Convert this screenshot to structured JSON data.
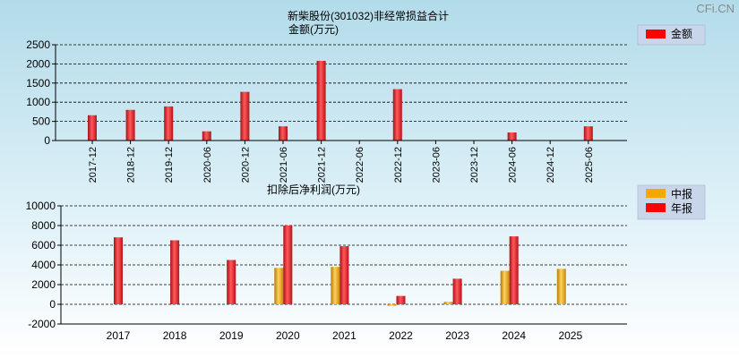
{
  "watermark": "CFi.CN",
  "colors": {
    "red": "#e8202a",
    "gold": "#f0a500"
  },
  "chart_data": [
    {
      "type": "bar",
      "title": "新柴股份(301032)非经常损益合计",
      "subtitle": "金额(万元)",
      "legend": [
        "金额"
      ],
      "legend_position": "top-right",
      "categories": [
        "2017-12",
        "2018-12",
        "2019-12",
        "2020-06",
        "2020-12",
        "2021-06",
        "2021-12",
        "2022-06",
        "2022-12",
        "2023-06",
        "2023-12",
        "2024-06",
        "2024-12",
        "2025-06"
      ],
      "values": [
        660,
        800,
        890,
        240,
        1270,
        370,
        2080,
        0,
        1340,
        0,
        0,
        210,
        0,
        370
      ],
      "ylim": [
        0,
        2500
      ],
      "yticks": [
        0,
        500,
        1000,
        1500,
        2000,
        2500
      ],
      "grid": true
    },
    {
      "type": "bar",
      "title": "扣除后净利润(万元)",
      "legend": [
        "中报",
        "年报"
      ],
      "legend_position": "top-right",
      "categories": [
        "2017",
        "2018",
        "2019",
        "2020",
        "2021",
        "2022",
        "2023",
        "2024",
        "2025"
      ],
      "series": [
        {
          "name": "中报",
          "values": [
            null,
            null,
            null,
            3700,
            3800,
            -150,
            250,
            3400,
            3600
          ]
        },
        {
          "name": "年报",
          "values": [
            6800,
            6500,
            4500,
            8000,
            5900,
            850,
            2600,
            6900,
            null
          ]
        }
      ],
      "ylim": [
        -2000,
        10000
      ],
      "yticks": [
        -2000,
        0,
        2000,
        4000,
        6000,
        8000,
        10000
      ],
      "grid": true
    }
  ]
}
